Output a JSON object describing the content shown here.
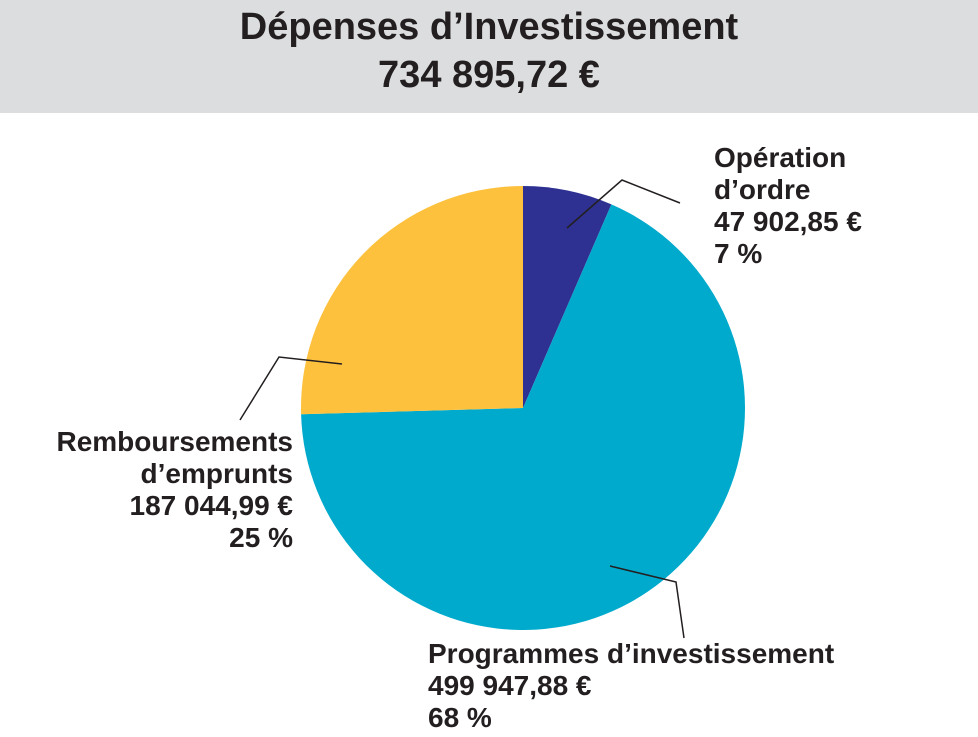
{
  "header": {
    "title": "Dépenses d’Investissement",
    "total": "734 895,72 €"
  },
  "chart_data": {
    "type": "pie",
    "title": "Dépenses d’Investissement",
    "total": "734 895,72 €",
    "slices": [
      {
        "name_lines": [
          "Opération",
          "d’ordre"
        ],
        "value": 47902.85,
        "value_label": "47 902,85 €",
        "percent_label": "7 %",
        "color": "#2e3192"
      },
      {
        "name_lines": [
          "Programmes d’investissement"
        ],
        "value": 499947.88,
        "value_label": "499 947,88 €",
        "percent_label": "68 %",
        "color": "#00aacc"
      },
      {
        "name_lines": [
          "Remboursements",
          "d’emprunts"
        ],
        "value": 187044.99,
        "value_label": "187 044,99 €",
        "percent_label": "25 %",
        "color": "#fdc13d"
      }
    ]
  }
}
